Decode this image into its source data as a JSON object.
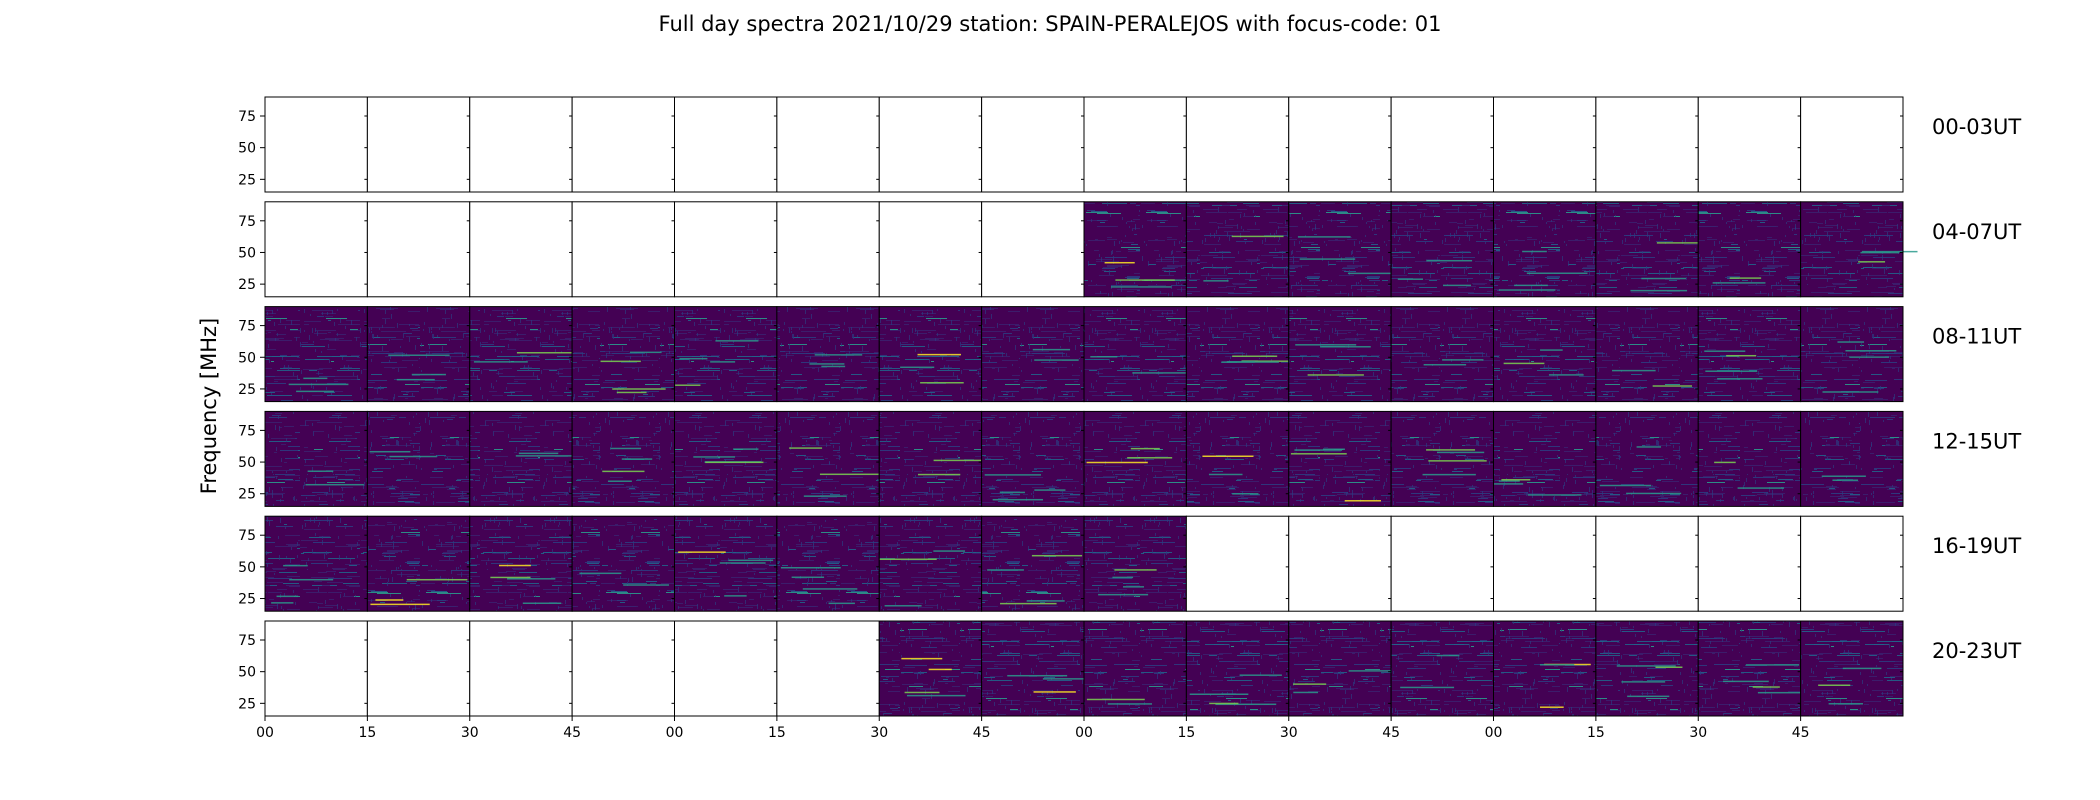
{
  "chart_data": {
    "type": "heatmap",
    "title": "Full day spectra 2021/10/29 station: SPAIN-PERALEJOS with focus-code: 01",
    "xlabel": "",
    "ylabel": "Frequency [MHz]",
    "y_ticks": [
      "75",
      "50",
      "25"
    ],
    "ylim": [
      15,
      90
    ],
    "x_ticks": [
      "00",
      "15",
      "30",
      "45",
      "00",
      "15",
      "30",
      "45",
      "00",
      "15",
      "30",
      "45",
      "00",
      "15",
      "30",
      "45"
    ],
    "panels_per_row": 16,
    "grid": false,
    "colormap": [
      "#440154",
      "#3b1f6e",
      "#2c3b80",
      "#21628a",
      "#2a9a8c",
      "#7ad151",
      "#fde725"
    ],
    "rows": [
      {
        "label": "00-03UT",
        "data_present": [
          0,
          0,
          0,
          0,
          0,
          0,
          0,
          0,
          0,
          0,
          0,
          0,
          0,
          0,
          0,
          0
        ]
      },
      {
        "label": "04-07UT",
        "data_present": [
          0,
          0,
          0,
          0,
          0,
          0,
          0,
          0,
          1,
          1,
          1,
          1,
          1,
          1,
          1,
          1
        ]
      },
      {
        "label": "08-11UT",
        "data_present": [
          1,
          1,
          1,
          1,
          1,
          1,
          1,
          1,
          1,
          1,
          1,
          1,
          1,
          1,
          1,
          1
        ]
      },
      {
        "label": "12-15UT",
        "data_present": [
          1,
          1,
          1,
          1,
          1,
          1,
          1,
          1,
          1,
          1,
          1,
          1,
          1,
          1,
          1,
          1
        ]
      },
      {
        "label": "16-19UT",
        "data_present": [
          1,
          1,
          1,
          1,
          1,
          1,
          1,
          1,
          1,
          0,
          0,
          0,
          0,
          0,
          0,
          0
        ]
      },
      {
        "label": "20-23UT",
        "data_present": [
          0,
          0,
          0,
          0,
          0,
          0,
          1,
          1,
          1,
          1,
          1,
          1,
          1,
          1,
          1,
          1
        ]
      }
    ]
  }
}
